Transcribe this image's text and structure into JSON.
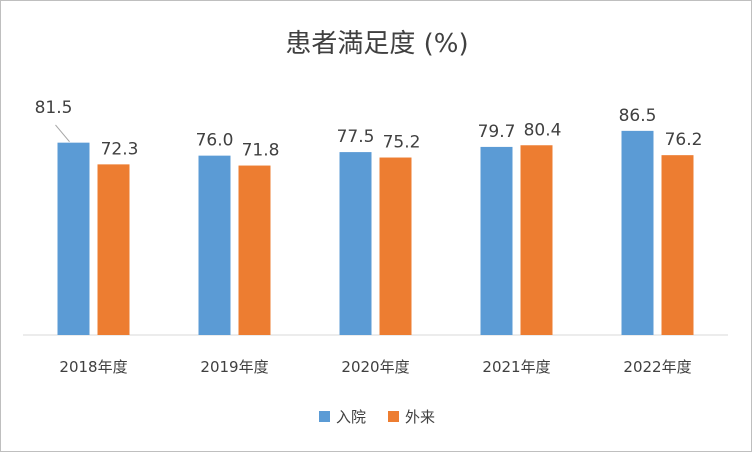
{
  "chart_data": {
    "type": "bar",
    "title": "患者満足度 (%)",
    "categories": [
      "2018年度",
      "2019年度",
      "2020年度",
      "2021年度",
      "2022年度"
    ],
    "series": [
      {
        "name": "入院",
        "values": [
          81.5,
          76.0,
          77.5,
          79.7,
          86.5
        ],
        "labels": [
          "81.5",
          "76.0",
          "77.5",
          "79.7",
          "86.5"
        ],
        "color": "#5b9bd5"
      },
      {
        "name": "外来",
        "values": [
          72.3,
          71.8,
          75.2,
          80.4,
          76.2
        ],
        "labels": [
          "72.3",
          "71.8",
          "75.2",
          "80.4",
          "76.2"
        ],
        "color": "#ed7d31"
      }
    ],
    "ylim": [
      0,
      100
    ],
    "grid": false,
    "legend_position": "bottom"
  }
}
